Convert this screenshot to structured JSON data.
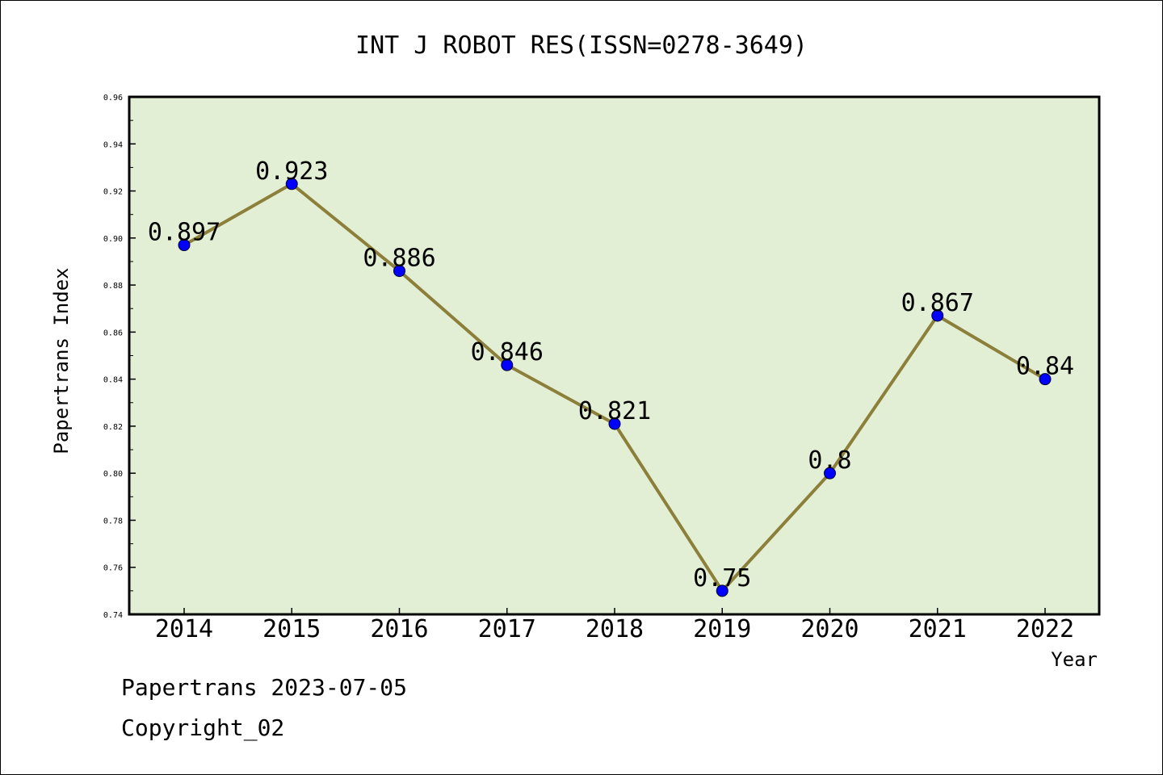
{
  "chart_data": {
    "type": "line",
    "title": "INT J ROBOT RES(ISSN=0278-3649)",
    "xlabel": "Year",
    "ylabel": "Papertrans Index",
    "categories": [
      "2014",
      "2015",
      "2016",
      "2017",
      "2018",
      "2019",
      "2020",
      "2021",
      "2022"
    ],
    "values": [
      0.897,
      0.923,
      0.886,
      0.846,
      0.821,
      0.75,
      0.8,
      0.867,
      0.84
    ],
    "data_labels": [
      "0.897",
      "0.923",
      "0.886",
      "0.846",
      "0.821",
      "0.75",
      "0.8",
      "0.867",
      "0.84"
    ],
    "ylim": [
      0.74,
      0.96
    ],
    "yticks": [
      "0.74",
      "0.76",
      "0.78",
      "0.80",
      "0.82",
      "0.84",
      "0.86",
      "0.88",
      "0.90",
      "0.92",
      "0.94",
      "0.96"
    ],
    "grid": false,
    "legend": "none",
    "colors": {
      "plot_background": "#e2efd5",
      "line": "#8c7f3a",
      "marker": "#0000ff",
      "axis": "#000000"
    }
  },
  "footer": {
    "line1": "Papertrans 2023-07-05",
    "line2": "Copyright_02"
  }
}
